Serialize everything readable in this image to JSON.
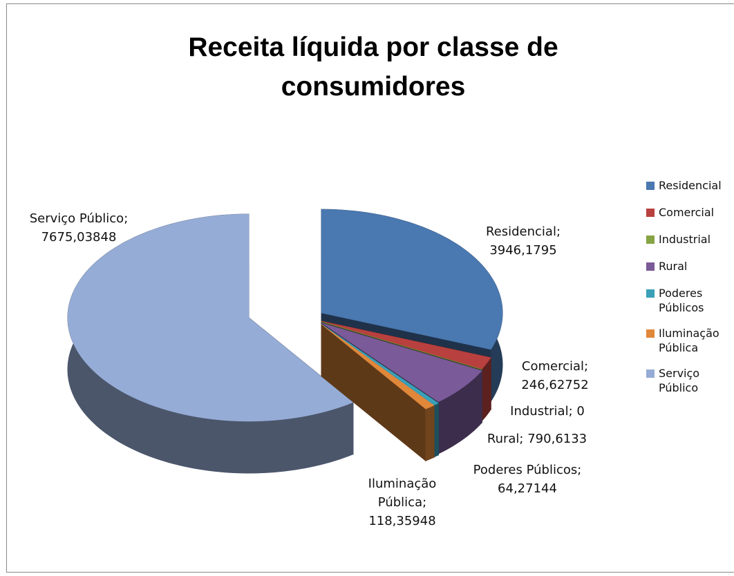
{
  "chart_data": {
    "type": "pie",
    "title": "Receita líquida por classe de consumidores",
    "categories": [
      "Residencial",
      "Comercial",
      "Industrial",
      "Rural",
      "Poderes Públicos",
      "Iluminação Pública",
      "Serviço Público"
    ],
    "values": [
      3946.1795,
      246.62752,
      0,
      790.6133,
      64.27144,
      118.35948,
      7675.03848
    ],
    "value_labels": [
      "3946,1795",
      "246,62752",
      "0",
      "790,6133",
      "64,27144",
      "118,35948",
      "7675,03848"
    ],
    "label_separator": ";",
    "colors": [
      "#4a78b0",
      "#b8403e",
      "#86a444",
      "#7a5a98",
      "#3a9fb8",
      "#e0873a",
      "#95acd6"
    ],
    "legend": "right"
  }
}
